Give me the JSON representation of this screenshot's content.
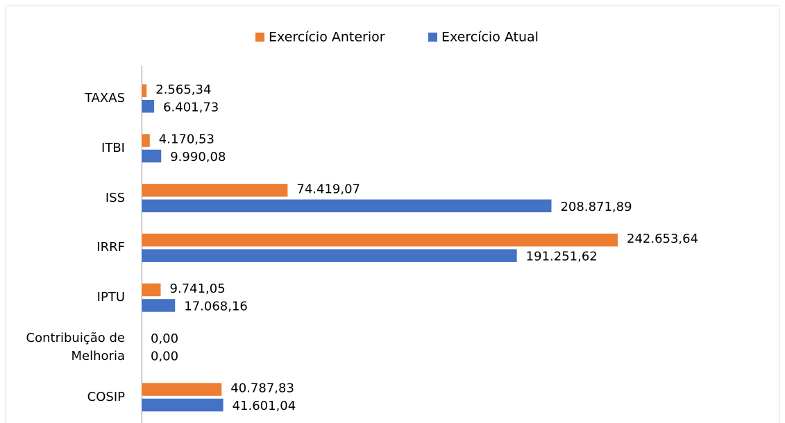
{
  "chart_data": {
    "type": "hbar",
    "categories": [
      "TAXAS",
      "ITBI",
      "ISS",
      "IRRF",
      "IPTU",
      "Contribuição de Melhoria",
      "COSIP"
    ],
    "series": [
      {
        "name": "Exercício Anterior",
        "color": "#ED7D31",
        "values": [
          2565.34,
          4170.53,
          74419.07,
          242653.64,
          9741.05,
          0,
          40787.83
        ],
        "value_labels": [
          "2.565,34",
          "4.170,53",
          "74.419,07",
          "242.653,64",
          "9.741,05",
          "0,00",
          "40.787,83"
        ]
      },
      {
        "name": "Exercício Atual",
        "color": "#4472C4",
        "values": [
          6401.73,
          9990.08,
          208871.89,
          191251.62,
          17068.16,
          0,
          41601.04
        ],
        "value_labels": [
          "6.401,73",
          "9.990,08",
          "208.871,89",
          "191.251,62",
          "17.068,16",
          "0,00",
          "41.601,04"
        ]
      }
    ],
    "legend": "top"
  }
}
